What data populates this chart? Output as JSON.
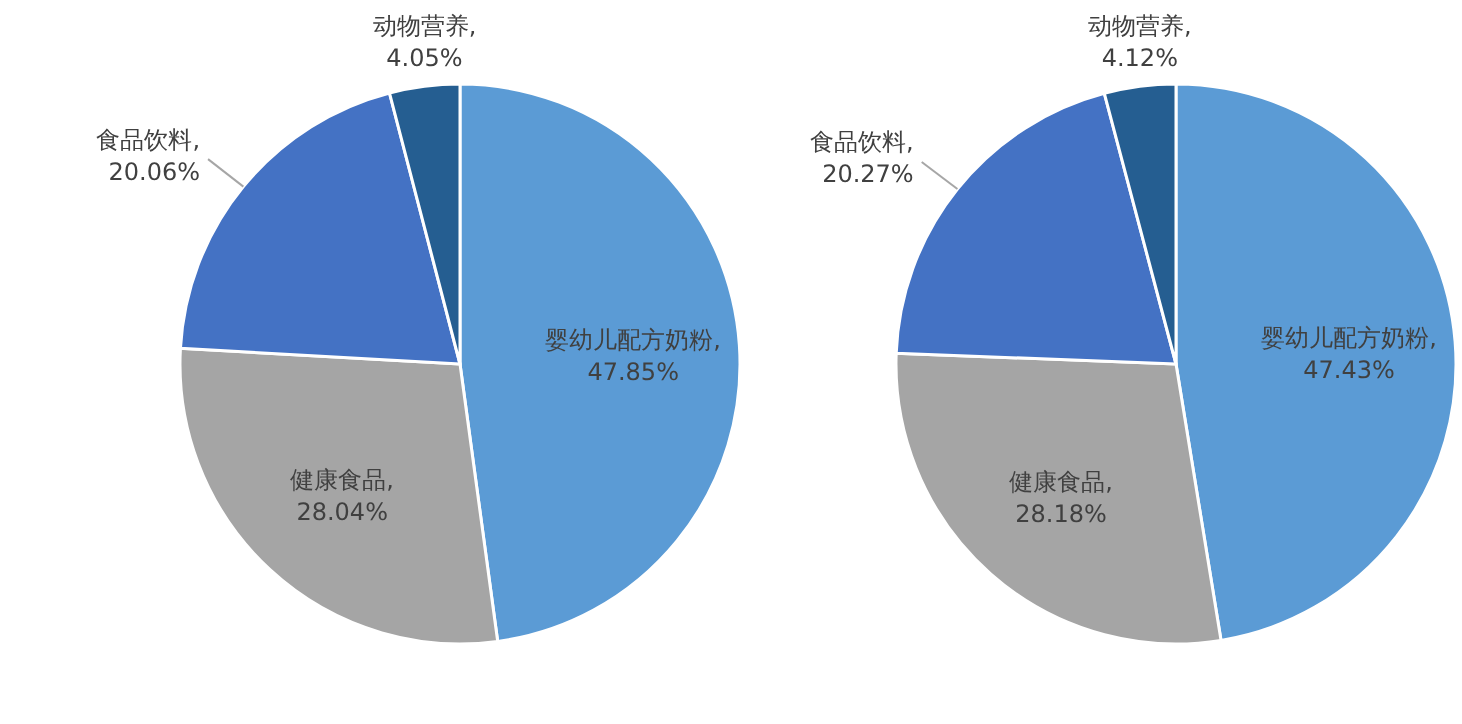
{
  "chart_data": [
    {
      "type": "pie",
      "categories": [
        "婴幼儿配方奶粉",
        "健康食品",
        "食品饮料",
        "动物营养"
      ],
      "values": [
        47.85,
        28.04,
        20.06,
        4.05
      ],
      "value_labels": [
        ", 47.85%",
        ", 28.04%",
        ", 20.06%",
        ", 4.05%"
      ],
      "colors": [
        "#5b9bd5",
        "#a5a5a5",
        "#4472c4",
        "#255e91"
      ]
    },
    {
      "type": "pie",
      "categories": [
        "婴幼儿配方奶粉",
        "健康食品",
        "食品饮料",
        "动物营养"
      ],
      "values": [
        47.43,
        28.18,
        20.27,
        4.12
      ],
      "value_labels": [
        ", 47.43%",
        ", 28.18%",
        ", 20.27%",
        ", 4.12%"
      ],
      "colors": [
        "#5b9bd5",
        "#a5a5a5",
        "#4472c4",
        "#255e91"
      ]
    }
  ]
}
